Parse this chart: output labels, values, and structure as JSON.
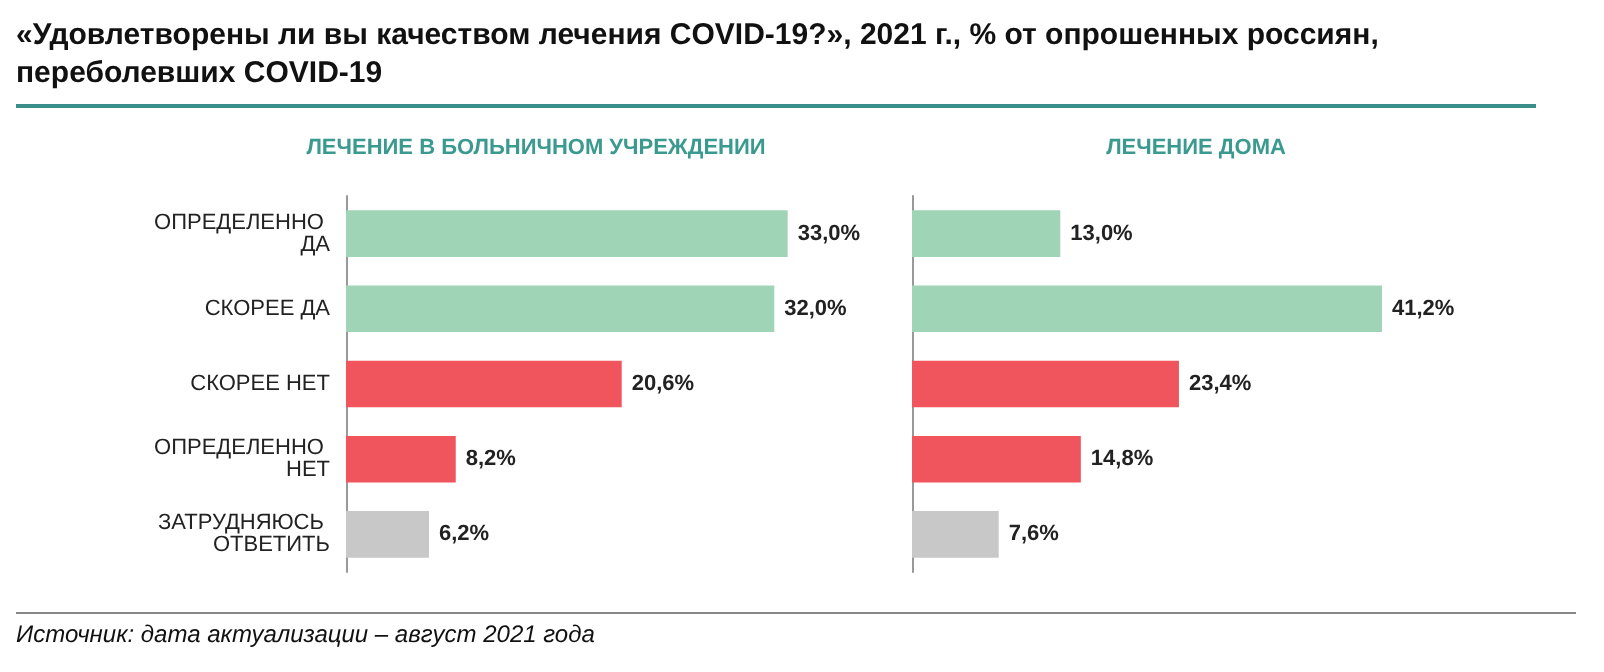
{
  "chart_data": [
    {
      "type": "bar",
      "orientation": "horizontal",
      "title": "«Удовлетворены ли вы качеством лечения COVID-19?», 2021 г., % от опрошенных россиян, переболевших COVID-19",
      "subtitle": "ЛЕЧЕНИЕ В БОЛЬНИЧНОМ УЧРЕЖДЕНИИ",
      "categories": [
        "ОПРЕДЕЛЕННО ДА",
        "СКОРЕЕ ДА",
        "СКОРЕЕ НЕТ",
        "ОПРЕДЕЛЕННО НЕТ",
        "ЗАТРУДНЯЮСЬ ОТВЕТИТЬ"
      ],
      "values": [
        33.0,
        32.0,
        20.6,
        8.2,
        6.2
      ],
      "value_labels": [
        "33,0%",
        "32,0%",
        "20,6%",
        "8,2%",
        "6,2%"
      ],
      "colors": [
        "#9fd4b6",
        "#9fd4b6",
        "#f0545c",
        "#f0545c",
        "#c8c8c8"
      ],
      "annotations": [
        "Источник: дата актуализации – август 2021 года"
      ]
    },
    {
      "type": "bar",
      "orientation": "horizontal",
      "title": "ЛЕЧЕНИЕ ДОМА",
      "tick_labels": false,
      "categories": [
        "ОПРЕДЕЛЕННО ДА",
        "СКОРЕЕ ДА",
        "СКОРЕЕ НЕТ",
        "ОПРЕДЕЛЕННО НЕТ",
        "ЗАТРУДНЯЮСЬ ОТВЕТИТЬ"
      ],
      "values": [
        13.0,
        41.2,
        23.4,
        14.8,
        7.6
      ],
      "value_labels": [
        "13,0%",
        "41,2%",
        "23,4%",
        "14,8%",
        "7,6%"
      ],
      "colors": [
        "#9fd4b6",
        "#9fd4b6",
        "#f0545c",
        "#f0545c",
        "#c8c8c8"
      ]
    }
  ]
}
